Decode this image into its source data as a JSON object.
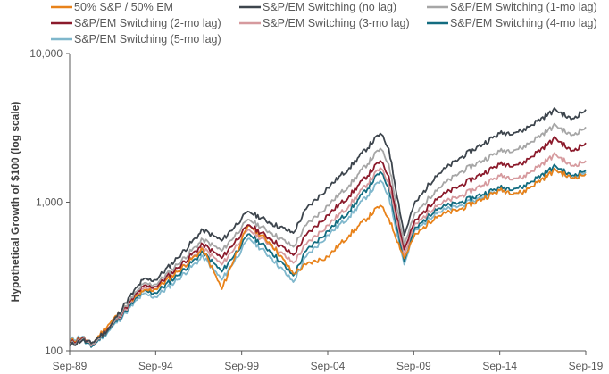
{
  "chart_data": {
    "type": "line",
    "title": "",
    "xlabel": "",
    "ylabel": "Hypothetical Growth of $100  (log scale)",
    "y_scale": "log",
    "ylim": [
      100,
      10000
    ],
    "xlim": [
      1989.75,
      2019.75
    ],
    "y_ticks": [
      {
        "value": 100,
        "label": "100"
      },
      {
        "value": 1000,
        "label": "1,000"
      },
      {
        "value": 10000,
        "label": "10,000"
      }
    ],
    "x_ticks": [
      {
        "value": 1989.75,
        "label": "Sep-89"
      },
      {
        "value": 1994.75,
        "label": "Sep-94"
      },
      {
        "value": 1999.75,
        "label": "Sep-99"
      },
      {
        "value": 2004.75,
        "label": "Sep-04"
      },
      {
        "value": 2009.75,
        "label": "Sep-09"
      },
      {
        "value": 2014.75,
        "label": "Sep-14"
      },
      {
        "value": 2019.75,
        "label": "Sep-19"
      }
    ],
    "legend_position": "top",
    "x": [
      1989.75,
      1990.5,
      1991,
      1992,
      1993,
      1994,
      1994.75,
      1996,
      1997.5,
      1998.6,
      1999.75,
      2000.2,
      2001.5,
      2002.75,
      2003.5,
      2004.75,
      2006,
      2007.8,
      2008.3,
      2009.2,
      2009.75,
      2011,
      2012.5,
      2014.75,
      2016,
      2018,
      2018.9,
      2019.75
    ],
    "series": [
      {
        "name": "50% S&P / 50% EM",
        "color": "#e8821a",
        "values": [
          115,
          123,
          110,
          150,
          200,
          250,
          260,
          340,
          480,
          260,
          560,
          700,
          520,
          330,
          380,
          430,
          600,
          950,
          780,
          420,
          580,
          800,
          900,
          1200,
          1150,
          1650,
          1450,
          1550
        ]
      },
      {
        "name": "S&P/EM Switching (no lag)",
        "color": "#3d454d",
        "values": [
          108,
          118,
          112,
          140,
          210,
          300,
          300,
          420,
          650,
          550,
          780,
          860,
          720,
          620,
          900,
          1250,
          1700,
          2900,
          2300,
          600,
          950,
          1500,
          2000,
          2900,
          3000,
          4200,
          3600,
          4200
        ]
      },
      {
        "name": "S&P/EM Switching (1-mo lag)",
        "color": "#a6a6a6",
        "values": [
          110,
          120,
          110,
          140,
          200,
          280,
          280,
          380,
          560,
          470,
          680,
          760,
          620,
          500,
          700,
          950,
          1300,
          2300,
          1800,
          520,
          800,
          1200,
          1600,
          2200,
          2300,
          3300,
          2800,
          3200
        ]
      },
      {
        "name": "S&P/EM Switching (2-mo lag)",
        "color": "#8b1a2b",
        "values": [
          112,
          122,
          110,
          142,
          195,
          270,
          270,
          360,
          520,
          420,
          620,
          700,
          560,
          440,
          600,
          820,
          1100,
          1900,
          1500,
          480,
          720,
          1050,
          1300,
          1800,
          1800,
          2700,
          2200,
          2500
        ]
      },
      {
        "name": "S&P/EM Switching (3-mo lag)",
        "color": "#d69a9e",
        "values": [
          114,
          120,
          108,
          140,
          190,
          260,
          260,
          340,
          490,
          380,
          570,
          650,
          510,
          390,
          520,
          700,
          950,
          1700,
          1350,
          440,
          680,
          950,
          1100,
          1500,
          1450,
          2100,
          1750,
          1900
        ]
      },
      {
        "name": "S&P/EM Switching (4-mo lag)",
        "color": "#136c80",
        "values": [
          115,
          118,
          106,
          138,
          185,
          250,
          245,
          320,
          460,
          340,
          520,
          610,
          460,
          320,
          470,
          640,
          870,
          1600,
          1250,
          400,
          640,
          900,
          1000,
          1250,
          1250,
          1750,
          1500,
          1650
        ]
      },
      {
        "name": "S&P/EM Switching (5-mo lag)",
        "color": "#7fb7cc",
        "values": [
          118,
          125,
          106,
          135,
          180,
          240,
          230,
          300,
          430,
          300,
          480,
          570,
          420,
          290,
          430,
          600,
          800,
          1400,
          1100,
          380,
          620,
          850,
          950,
          1200,
          1150,
          1650,
          1450,
          1600
        ]
      }
    ]
  }
}
